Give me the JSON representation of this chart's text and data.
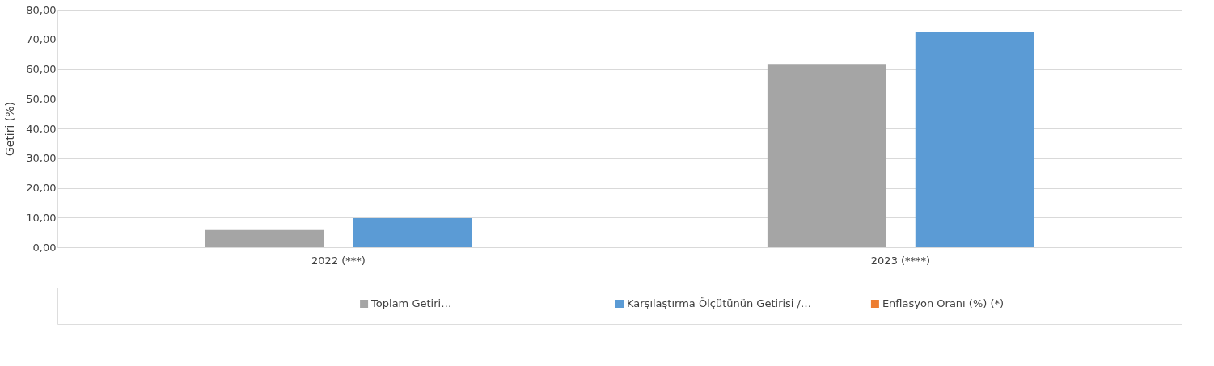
{
  "chart_data": {
    "type": "bar",
    "ylabel": "Getiri (%)",
    "categories": [
      "2022 (***)",
      "2023 (****)"
    ],
    "series": [
      {
        "name": "Toplam Getiri…",
        "color": "#a5a5a5",
        "values": [
          5.8,
          61.7
        ]
      },
      {
        "name": "Karşılaştırma Ölçütünün Getirisi /…",
        "color": "#5b9bd5",
        "values": [
          9.8,
          72.6
        ]
      },
      {
        "name": "Enflasyon Oranı (%) (*)",
        "color": "#ed7d31",
        "values": [
          null,
          null
        ]
      }
    ],
    "ylim": [
      0,
      80
    ],
    "yticks": [
      {
        "value": 0,
        "label": "0,00"
      },
      {
        "value": 10,
        "label": "10,00"
      },
      {
        "value": 20,
        "label": "20,00"
      },
      {
        "value": 30,
        "label": "30,00"
      },
      {
        "value": 40,
        "label": "40,00"
      },
      {
        "value": 50,
        "label": "50,00"
      },
      {
        "value": 60,
        "label": "60,00"
      },
      {
        "value": 70,
        "label": "70,00"
      },
      {
        "value": 80,
        "label": "80,00"
      }
    ],
    "grid": "y",
    "legend": "bottom"
  }
}
